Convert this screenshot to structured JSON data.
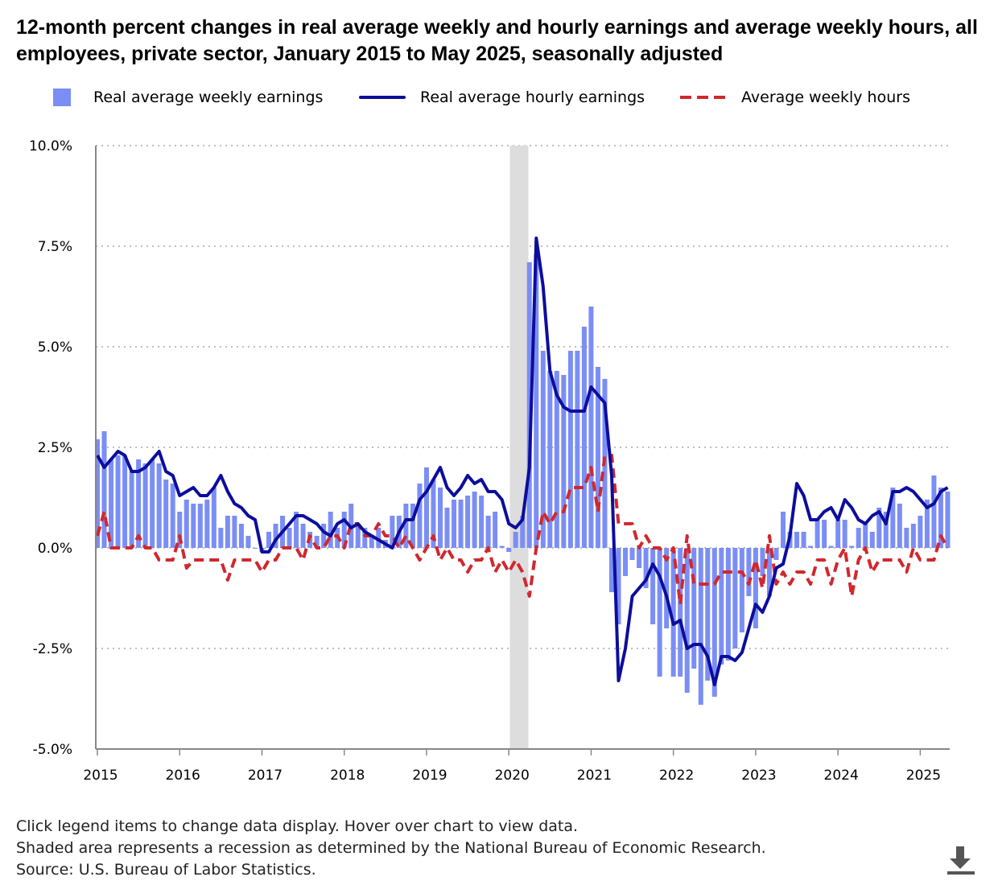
{
  "chart_data": {
    "type": "bar+line",
    "title": "12-month percent changes in real average weekly and hourly earnings and average weekly hours, all employees, private sector, January 2015 to May 2025, seasonally adjusted",
    "x_start": "2015-01",
    "x_end": "2025-05",
    "x_ticks": [
      "2015",
      "2016",
      "2017",
      "2018",
      "2019",
      "2020",
      "2021",
      "2022",
      "2023",
      "2024",
      "2025"
    ],
    "y_ticks": [
      "10.0%",
      "7.5%",
      "5.0%",
      "2.5%",
      "0.0%",
      "-2.5%",
      "-5.0%"
    ],
    "y_tick_values": [
      10,
      7.5,
      5,
      2.5,
      0,
      -2.5,
      -5
    ],
    "ylim": [
      -5,
      10
    ],
    "grid": "horizontal dotted",
    "legend_placement": "top",
    "recession": {
      "start": "2020-02",
      "end": "2020-04",
      "color": "#dddddd"
    },
    "series": [
      {
        "name": "Real average weekly earnings",
        "kind": "bar",
        "color": "#7b8ef5",
        "values": [
          2.7,
          2.9,
          2.2,
          2.3,
          2.3,
          1.9,
          2.2,
          2.1,
          2.2,
          2.1,
          1.7,
          1.6,
          0.9,
          1.2,
          1.1,
          1.1,
          1.2,
          1.5,
          0.5,
          0.8,
          0.8,
          0.6,
          0.3,
          0.0,
          -0.1,
          0.4,
          0.6,
          0.8,
          0.5,
          0.9,
          0.6,
          0.4,
          0.3,
          0.6,
          0.9,
          0.5,
          0.9,
          1.1,
          0.6,
          0.5,
          0.3,
          0.5,
          0.2,
          0.8,
          0.8,
          1.1,
          1.1,
          1.6,
          2.0,
          1.7,
          1.5,
          1.0,
          1.2,
          1.2,
          1.3,
          1.4,
          1.3,
          0.8,
          0.9,
          0.05,
          -0.1,
          0.4,
          0.8,
          7.1,
          7.3,
          4.9,
          4.4,
          4.4,
          4.3,
          4.9,
          4.9,
          5.5,
          6.0,
          4.5,
          4.2,
          -1.1,
          -1.9,
          -0.7,
          -0.3,
          -0.5,
          -1.0,
          -1.9,
          -3.2,
          -2.0,
          -3.2,
          -3.2,
          -3.6,
          -3.0,
          -3.9,
          -3.3,
          -3.7,
          -2.9,
          -2.8,
          -2.5,
          -2.1,
          -1.2,
          -2.0,
          -0.7,
          -1.2,
          -0.3,
          0.9,
          0.4,
          0.4,
          0.4,
          0.05,
          0.7,
          0.7,
          0.05,
          0.7,
          0.7,
          0.05,
          0.5,
          0.6,
          0.4,
          1.0,
          0.9,
          1.5,
          1.1,
          0.5,
          0.6,
          0.8,
          1.2,
          1.8,
          1.5,
          1.4
        ]
      },
      {
        "name": "Real average hourly earnings",
        "kind": "line",
        "color": "#0d0d9c",
        "values": [
          2.3,
          2.0,
          2.2,
          2.4,
          2.3,
          1.9,
          1.9,
          2.0,
          2.2,
          2.4,
          1.9,
          1.8,
          1.3,
          1.4,
          1.5,
          1.3,
          1.3,
          1.5,
          1.8,
          1.4,
          1.1,
          1.0,
          0.8,
          0.7,
          -0.1,
          -0.1,
          0.2,
          0.4,
          0.6,
          0.8,
          0.8,
          0.7,
          0.6,
          0.4,
          0.3,
          0.6,
          0.7,
          0.5,
          0.6,
          0.4,
          0.3,
          0.2,
          0.1,
          0.0,
          0.4,
          0.7,
          0.7,
          1.2,
          1.4,
          1.7,
          2.0,
          1.5,
          1.3,
          1.5,
          1.8,
          1.6,
          1.7,
          1.4,
          1.4,
          1.2,
          0.6,
          0.5,
          0.7,
          2.0,
          7.7,
          6.5,
          4.4,
          3.8,
          3.5,
          3.4,
          3.4,
          3.4,
          4.0,
          3.8,
          3.6,
          1.8,
          -3.3,
          -2.5,
          -1.2,
          -1.0,
          -0.8,
          -0.4,
          -0.7,
          -1.2,
          -1.9,
          -1.8,
          -2.5,
          -2.4,
          -2.4,
          -2.7,
          -3.4,
          -2.7,
          -2.7,
          -2.8,
          -2.6,
          -2.0,
          -1.4,
          -1.6,
          -1.2,
          -0.5,
          -0.4,
          0.3,
          1.6,
          1.3,
          0.7,
          0.7,
          0.9,
          1.0,
          0.7,
          1.2,
          1.0,
          0.7,
          0.6,
          0.8,
          0.9,
          0.6,
          1.4,
          1.4,
          1.5,
          1.4,
          1.2,
          1.0,
          1.1,
          1.4,
          1.5
        ]
      },
      {
        "name": "Average weekly hours",
        "kind": "dashed-line",
        "color": "#d0282e",
        "values": [
          0.3,
          0.9,
          0.0,
          0.0,
          0.0,
          0.0,
          0.3,
          0.0,
          0.0,
          -0.3,
          -0.3,
          -0.3,
          0.3,
          -0.5,
          -0.3,
          -0.3,
          -0.3,
          -0.3,
          -0.3,
          -0.8,
          -0.3,
          -0.3,
          -0.3,
          -0.3,
          -0.6,
          -0.3,
          -0.3,
          0.0,
          0.0,
          0.0,
          -0.3,
          0.3,
          0.0,
          0.0,
          0.3,
          0.3,
          0.0,
          0.6,
          0.6,
          0.3,
          0.3,
          0.6,
          0.3,
          0.3,
          0.0,
          0.3,
          0.0,
          -0.3,
          0.0,
          0.3,
          -0.3,
          0.0,
          -0.3,
          -0.3,
          -0.6,
          -0.3,
          -0.3,
          0.0,
          -0.6,
          -0.3,
          -0.6,
          -0.3,
          -0.6,
          -1.2,
          0.0,
          0.9,
          0.6,
          0.9,
          0.9,
          1.5,
          1.5,
          1.5,
          2.0,
          0.9,
          2.3,
          2.3,
          0.6,
          0.6,
          0.6,
          0.0,
          0.3,
          0.0,
          0.0,
          -0.3,
          0.0,
          -1.4,
          0.3,
          -0.9,
          -0.9,
          -0.9,
          -0.9,
          -0.6,
          -0.6,
          -0.6,
          -0.6,
          -0.9,
          -0.3,
          -1.0,
          0.3,
          -0.9,
          -0.6,
          -0.9,
          -0.6,
          -0.6,
          -0.9,
          -0.3,
          -0.3,
          -0.9,
          -0.3,
          0.0,
          -1.2,
          -0.3,
          0.0,
          -0.6,
          -0.3,
          -0.3,
          -0.3,
          -0.3,
          -0.6,
          0.0,
          -0.3,
          -0.3,
          -0.3,
          0.3,
          0.0
        ]
      }
    ]
  },
  "footer": {
    "line1": "Click legend items to change data display. Hover over chart to view data.",
    "line2": "Shaded area represents a recession as determined by the National Bureau of Economic Research.",
    "line3": "Source: U.S. Bureau of Labor Statistics."
  },
  "icons": {
    "download": "download-icon"
  }
}
